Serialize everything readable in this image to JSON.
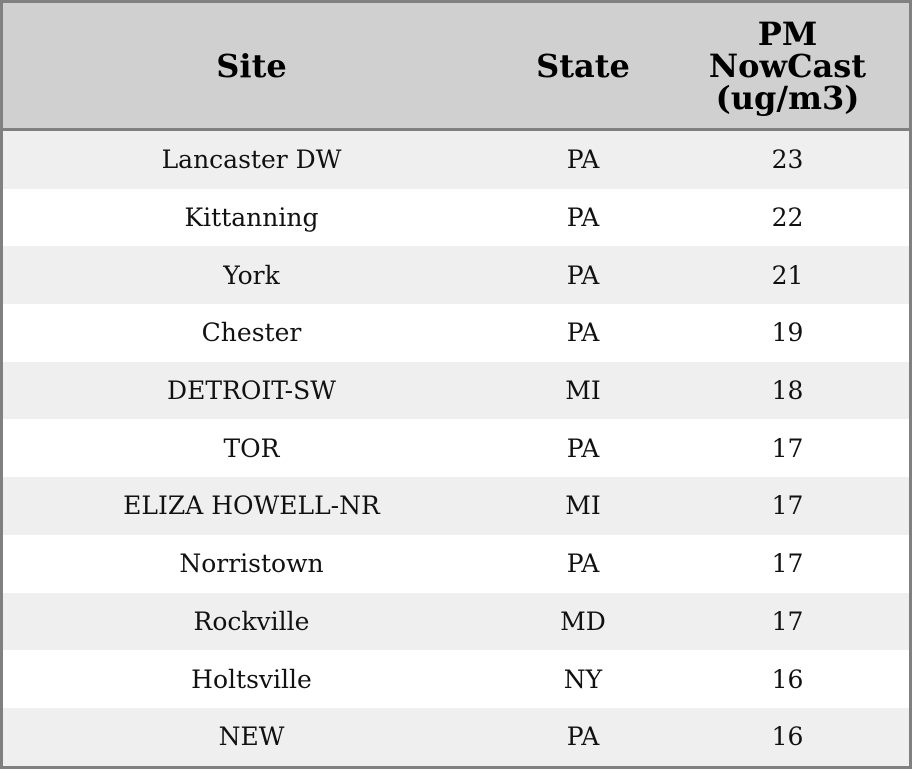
{
  "table": {
    "headers": [
      "Site",
      "State",
      "PM NowCast (ug/m3)"
    ],
    "header_lines": [
      "PM",
      "NowCast",
      "(ug/m3)"
    ],
    "rows": [
      {
        "site": "Lancaster DW",
        "state": "PA",
        "value": "23"
      },
      {
        "site": "Kittanning",
        "state": "PA",
        "value": "22"
      },
      {
        "site": "York",
        "state": "PA",
        "value": "21"
      },
      {
        "site": "Chester",
        "state": "PA",
        "value": "19"
      },
      {
        "site": "DETROIT-SW",
        "state": "MI",
        "value": "18"
      },
      {
        "site": "TOR",
        "state": "PA",
        "value": "17"
      },
      {
        "site": "ELIZA HOWELL-NR",
        "state": "MI",
        "value": "17"
      },
      {
        "site": "Norristown",
        "state": "PA",
        "value": "17"
      },
      {
        "site": "Rockville",
        "state": "MD",
        "value": "17"
      },
      {
        "site": "Holtsville",
        "state": "NY",
        "value": "16"
      },
      {
        "site": "NEW",
        "state": "PA",
        "value": "16"
      }
    ]
  },
  "colors": {
    "header_bg": "#d0d0d0",
    "stripe_bg": "#efefef",
    "border": "#808080"
  }
}
